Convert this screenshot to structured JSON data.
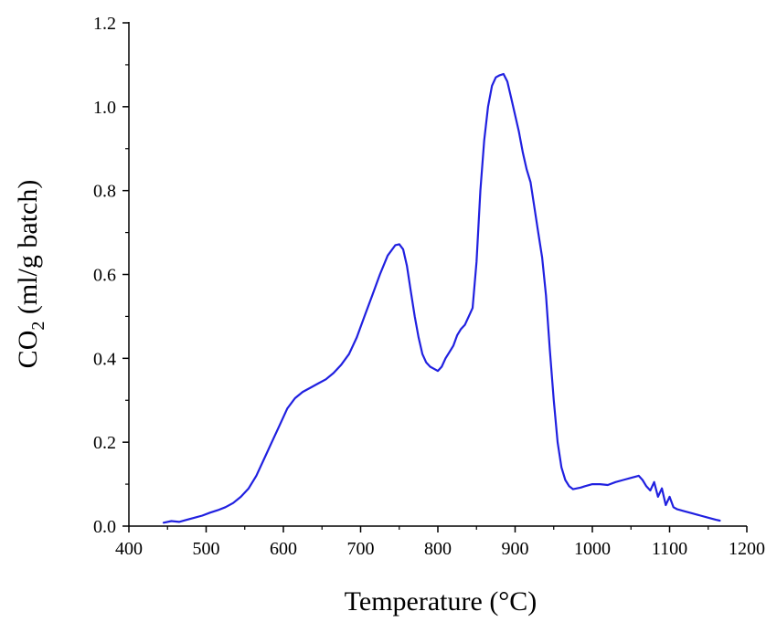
{
  "chart_data": {
    "type": "line",
    "xlabel": "Temperature   (°C)",
    "ylabel": {
      "main_prefix": "CO",
      "subscript": "2",
      "main_suffix": " (ml/g batch)"
    },
    "xlim": [
      400,
      1200
    ],
    "ylim": [
      0,
      1.2
    ],
    "x_ticks": [
      "400",
      "500",
      "600",
      "700",
      "800",
      "900",
      "1000",
      "1100",
      "1200"
    ],
    "y_ticks": [
      "0.0",
      "0.2",
      "0.4",
      "0.6",
      "0.8",
      "1.0",
      "1.2"
    ],
    "grid": false,
    "line_color": "#2020e0",
    "series": [
      {
        "x": [
          445,
          455,
          465,
          475,
          485,
          495,
          505,
          515,
          525,
          535,
          545,
          555,
          565,
          575,
          585,
          595,
          605,
          615,
          625,
          635,
          645,
          655,
          665,
          675,
          685,
          695,
          705,
          715,
          725,
          735,
          745,
          750,
          755,
          760,
          765,
          770,
          775,
          780,
          785,
          790,
          795,
          800,
          805,
          810,
          815,
          820,
          825,
          830,
          835,
          840,
          845,
          850,
          855,
          860,
          865,
          870,
          875,
          880,
          885,
          890,
          895,
          900,
          905,
          910,
          915,
          920,
          925,
          930,
          935,
          940,
          945,
          950,
          955,
          960,
          965,
          970,
          975,
          980,
          985,
          990,
          1000,
          1010,
          1020,
          1030,
          1040,
          1050,
          1060,
          1065,
          1070,
          1075,
          1080,
          1085,
          1090,
          1095,
          1100,
          1105,
          1110,
          1120,
          1130,
          1140,
          1150,
          1160,
          1165
        ],
        "y": [
          0.008,
          0.012,
          0.01,
          0.015,
          0.02,
          0.025,
          0.032,
          0.038,
          0.045,
          0.055,
          0.07,
          0.09,
          0.12,
          0.16,
          0.2,
          0.24,
          0.28,
          0.305,
          0.32,
          0.33,
          0.34,
          0.35,
          0.365,
          0.385,
          0.41,
          0.45,
          0.5,
          0.55,
          0.6,
          0.645,
          0.67,
          0.672,
          0.66,
          0.62,
          0.56,
          0.5,
          0.45,
          0.41,
          0.39,
          0.38,
          0.375,
          0.37,
          0.38,
          0.4,
          0.415,
          0.43,
          0.455,
          0.47,
          0.48,
          0.5,
          0.52,
          0.63,
          0.8,
          0.92,
          1.0,
          1.05,
          1.07,
          1.075,
          1.078,
          1.06,
          1.02,
          0.98,
          0.94,
          0.89,
          0.85,
          0.82,
          0.76,
          0.7,
          0.64,
          0.55,
          0.42,
          0.3,
          0.2,
          0.14,
          0.11,
          0.095,
          0.088,
          0.09,
          0.092,
          0.095,
          0.1,
          0.1,
          0.098,
          0.105,
          0.11,
          0.115,
          0.12,
          0.11,
          0.095,
          0.085,
          0.105,
          0.07,
          0.09,
          0.05,
          0.07,
          0.045,
          0.04,
          0.035,
          0.03,
          0.025,
          0.02,
          0.015,
          0.013
        ]
      }
    ]
  }
}
